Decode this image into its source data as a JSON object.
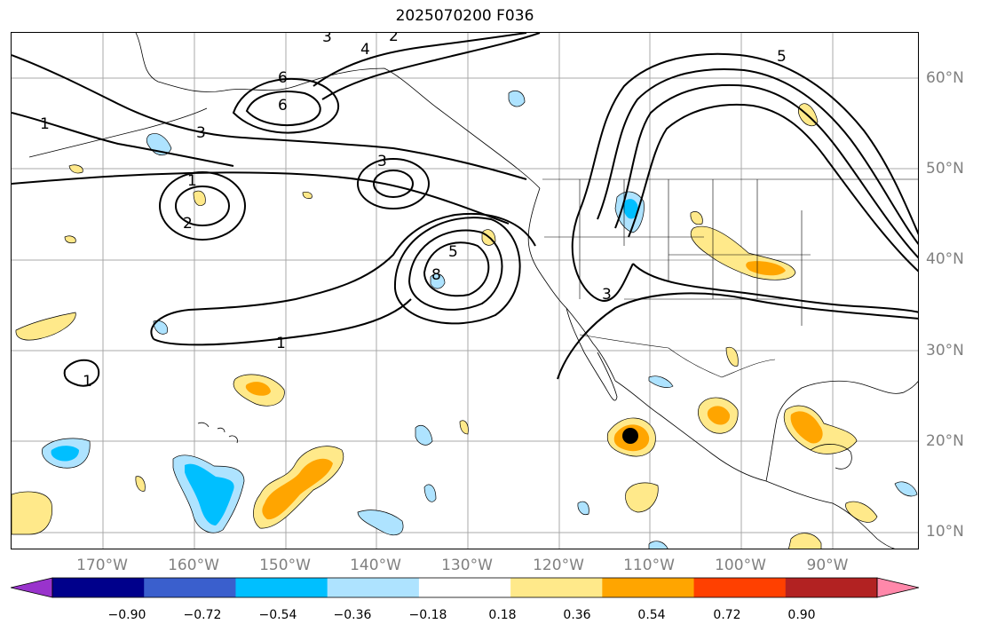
{
  "title": "2025070200 F036",
  "map": {
    "longitude_labels": [
      "170°W",
      "160°W",
      "150°W",
      "140°W",
      "130°W",
      "120°W",
      "110°W",
      "100°W",
      "90°W"
    ],
    "latitude_labels": [
      "60°N",
      "50°N",
      "40°N",
      "30°N",
      "20°N",
      "10°N"
    ],
    "contour_labels": [
      "1",
      "1",
      "1",
      "1",
      "2",
      "2",
      "3",
      "3",
      "3",
      "4",
      "5",
      "5",
      "6",
      "6",
      "8",
      "3"
    ],
    "colors": {
      "contour": "#000000",
      "grid": "#a0a0a0",
      "coast": "#000000",
      "label": "#808080"
    }
  },
  "colorbar": {
    "ticks": [
      "−0.90",
      "−0.72",
      "−0.54",
      "−0.36",
      "−0.18",
      "0.18",
      "0.36",
      "0.54",
      "0.72",
      "0.90"
    ],
    "colors": [
      "#9933cc",
      "#00008b",
      "#3a5fcd",
      "#00bfff",
      "#aee3ff",
      "#ffffff",
      "#ffe98a",
      "#ffa500",
      "#ff4000",
      "#b22222",
      "#ff88aa"
    ]
  }
}
